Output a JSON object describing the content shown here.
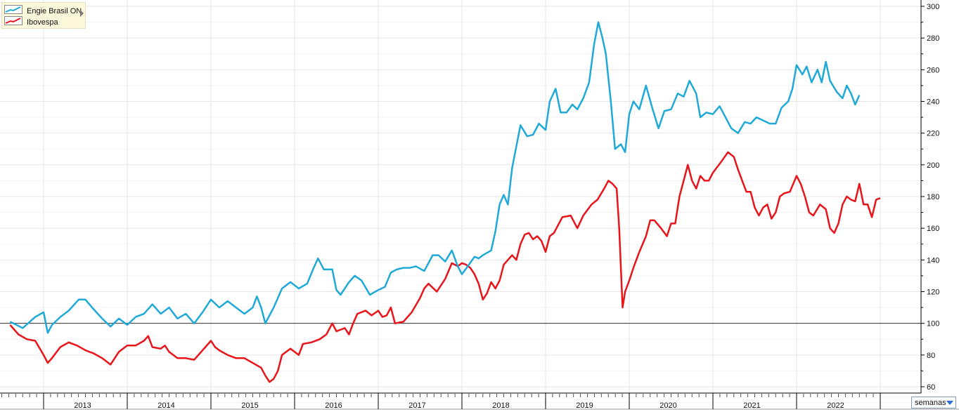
{
  "legend": {
    "items": [
      {
        "label": "Engie Brasil ON",
        "color": "#1fa9d8"
      },
      {
        "label": "Ibovespa",
        "color": "#e8141a"
      }
    ]
  },
  "period_selector": {
    "value": "semanas"
  },
  "chart_data": {
    "type": "line",
    "x_tick_labels": [
      "2013",
      "2014",
      "2015",
      "2016",
      "2017",
      "2018",
      "2019",
      "2020",
      "2021",
      "2022"
    ],
    "y_ticks": [
      60,
      80,
      100,
      120,
      140,
      160,
      180,
      200,
      220,
      240,
      260,
      280,
      300
    ],
    "ylim": [
      50,
      300
    ],
    "xlim": [
      2012.6,
      2023.0
    ],
    "baseline": 100,
    "grid": true,
    "y_axis_side": "right",
    "legend_position": "top-left",
    "series": [
      {
        "name": "Engie Brasil ON",
        "color": "#1fa9d8",
        "points": [
          [
            2012.6,
            101
          ],
          [
            2012.75,
            97
          ],
          [
            2012.9,
            104
          ],
          [
            2013.0,
            107
          ],
          [
            2013.05,
            94
          ],
          [
            2013.1,
            99
          ],
          [
            2013.2,
            104
          ],
          [
            2013.3,
            108
          ],
          [
            2013.42,
            115
          ],
          [
            2013.5,
            115
          ],
          [
            2013.58,
            110
          ],
          [
            2013.7,
            103
          ],
          [
            2013.8,
            98
          ],
          [
            2013.9,
            103
          ],
          [
            2014.0,
            99
          ],
          [
            2014.1,
            104
          ],
          [
            2014.2,
            106
          ],
          [
            2014.3,
            112
          ],
          [
            2014.4,
            106
          ],
          [
            2014.5,
            110
          ],
          [
            2014.6,
            103
          ],
          [
            2014.7,
            106
          ],
          [
            2014.8,
            100
          ],
          [
            2014.9,
            107
          ],
          [
            2015.0,
            115
          ],
          [
            2015.1,
            110
          ],
          [
            2015.2,
            114
          ],
          [
            2015.3,
            110
          ],
          [
            2015.4,
            106
          ],
          [
            2015.5,
            110
          ],
          [
            2015.55,
            117
          ],
          [
            2015.6,
            110
          ],
          [
            2015.65,
            100
          ],
          [
            2015.75,
            110
          ],
          [
            2015.85,
            122
          ],
          [
            2015.95,
            126
          ],
          [
            2016.05,
            122
          ],
          [
            2016.15,
            125
          ],
          [
            2016.22,
            134
          ],
          [
            2016.28,
            141
          ],
          [
            2016.35,
            134
          ],
          [
            2016.45,
            134
          ],
          [
            2016.5,
            121
          ],
          [
            2016.55,
            118
          ],
          [
            2016.65,
            126
          ],
          [
            2016.72,
            130
          ],
          [
            2016.8,
            127
          ],
          [
            2016.9,
            118
          ],
          [
            2017.0,
            121
          ],
          [
            2017.08,
            123
          ],
          [
            2017.15,
            132
          ],
          [
            2017.22,
            134
          ],
          [
            2017.3,
            135
          ],
          [
            2017.38,
            135
          ],
          [
            2017.45,
            136
          ],
          [
            2017.55,
            133
          ],
          [
            2017.65,
            143
          ],
          [
            2017.72,
            143
          ],
          [
            2017.8,
            139
          ],
          [
            2017.88,
            146
          ],
          [
            2017.95,
            136
          ],
          [
            2018.0,
            131
          ],
          [
            2018.07,
            136
          ],
          [
            2018.15,
            142
          ],
          [
            2018.2,
            141
          ],
          [
            2018.25,
            143
          ],
          [
            2018.35,
            146
          ],
          [
            2018.4,
            158
          ],
          [
            2018.45,
            175
          ],
          [
            2018.5,
            181
          ],
          [
            2018.55,
            175
          ],
          [
            2018.6,
            198
          ],
          [
            2018.7,
            225
          ],
          [
            2018.78,
            218
          ],
          [
            2018.85,
            219
          ],
          [
            2018.92,
            226
          ],
          [
            2019.0,
            222
          ],
          [
            2019.05,
            240
          ],
          [
            2019.12,
            248
          ],
          [
            2019.18,
            233
          ],
          [
            2019.25,
            233
          ],
          [
            2019.32,
            238
          ],
          [
            2019.38,
            235
          ],
          [
            2019.45,
            242
          ],
          [
            2019.52,
            252
          ],
          [
            2019.58,
            276
          ],
          [
            2019.63,
            290
          ],
          [
            2019.68,
            280
          ],
          [
            2019.72,
            270
          ],
          [
            2019.78,
            240
          ],
          [
            2019.83,
            210
          ],
          [
            2019.9,
            213
          ],
          [
            2019.95,
            208
          ],
          [
            2020.0,
            232
          ],
          [
            2020.05,
            240
          ],
          [
            2020.12,
            235
          ],
          [
            2020.2,
            250
          ],
          [
            2020.28,
            235
          ],
          [
            2020.35,
            223
          ],
          [
            2020.42,
            234
          ],
          [
            2020.5,
            235
          ],
          [
            2020.58,
            245
          ],
          [
            2020.65,
            243
          ],
          [
            2020.72,
            253
          ],
          [
            2020.8,
            245
          ],
          [
            2020.85,
            230
          ],
          [
            2020.92,
            233
          ],
          [
            2021.0,
            232
          ],
          [
            2021.08,
            237
          ],
          [
            2021.15,
            230
          ],
          [
            2021.22,
            223
          ],
          [
            2021.3,
            220
          ],
          [
            2021.38,
            227
          ],
          [
            2021.45,
            226
          ],
          [
            2021.52,
            230
          ],
          [
            2021.6,
            228
          ],
          [
            2021.68,
            226
          ],
          [
            2021.75,
            226
          ],
          [
            2021.82,
            236
          ],
          [
            2021.9,
            240
          ],
          [
            2021.95,
            248
          ],
          [
            2022.0,
            263
          ],
          [
            2022.07,
            257
          ],
          [
            2022.12,
            262
          ],
          [
            2022.18,
            252
          ],
          [
            2022.25,
            260
          ],
          [
            2022.3,
            252
          ],
          [
            2022.35,
            265
          ],
          [
            2022.4,
            253
          ],
          [
            2022.48,
            246
          ],
          [
            2022.55,
            242
          ],
          [
            2022.6,
            250
          ],
          [
            2022.65,
            245
          ],
          [
            2022.7,
            238
          ],
          [
            2022.75,
            244
          ]
        ]
      },
      {
        "name": "Ibovespa",
        "color": "#e8141a",
        "points": [
          [
            2012.6,
            99
          ],
          [
            2012.7,
            93
          ],
          [
            2012.8,
            90
          ],
          [
            2012.9,
            89
          ],
          [
            2013.0,
            80
          ],
          [
            2013.05,
            75
          ],
          [
            2013.1,
            78
          ],
          [
            2013.2,
            85
          ],
          [
            2013.3,
            88
          ],
          [
            2013.4,
            86
          ],
          [
            2013.5,
            83
          ],
          [
            2013.6,
            81
          ],
          [
            2013.7,
            78
          ],
          [
            2013.8,
            74
          ],
          [
            2013.9,
            82
          ],
          [
            2014.0,
            86
          ],
          [
            2014.1,
            86
          ],
          [
            2014.2,
            89
          ],
          [
            2014.25,
            92
          ],
          [
            2014.3,
            85
          ],
          [
            2014.4,
            84
          ],
          [
            2014.45,
            86
          ],
          [
            2014.5,
            82
          ],
          [
            2014.6,
            78
          ],
          [
            2014.7,
            78
          ],
          [
            2014.8,
            77
          ],
          [
            2014.9,
            83
          ],
          [
            2015.0,
            89
          ],
          [
            2015.05,
            85
          ],
          [
            2015.1,
            83
          ],
          [
            2015.2,
            80
          ],
          [
            2015.3,
            78
          ],
          [
            2015.4,
            78
          ],
          [
            2015.5,
            75
          ],
          [
            2015.6,
            72
          ],
          [
            2015.65,
            67
          ],
          [
            2015.7,
            63
          ],
          [
            2015.75,
            65
          ],
          [
            2015.8,
            70
          ],
          [
            2015.85,
            80
          ],
          [
            2015.95,
            84
          ],
          [
            2016.05,
            80
          ],
          [
            2016.1,
            87
          ],
          [
            2016.2,
            88
          ],
          [
            2016.3,
            90
          ],
          [
            2016.38,
            93
          ],
          [
            2016.45,
            100
          ],
          [
            2016.5,
            95
          ],
          [
            2016.6,
            97
          ],
          [
            2016.65,
            93
          ],
          [
            2016.7,
            100
          ],
          [
            2016.75,
            106
          ],
          [
            2016.85,
            108
          ],
          [
            2016.92,
            105
          ],
          [
            2017.0,
            108
          ],
          [
            2017.05,
            104
          ],
          [
            2017.1,
            105
          ],
          [
            2017.15,
            110
          ],
          [
            2017.2,
            100
          ],
          [
            2017.3,
            101
          ],
          [
            2017.4,
            107
          ],
          [
            2017.5,
            116
          ],
          [
            2017.55,
            122
          ],
          [
            2017.6,
            125
          ],
          [
            2017.7,
            120
          ],
          [
            2017.8,
            128
          ],
          [
            2017.88,
            138
          ],
          [
            2017.95,
            136
          ],
          [
            2018.0,
            138
          ],
          [
            2018.05,
            137
          ],
          [
            2018.1,
            135
          ],
          [
            2018.15,
            131
          ],
          [
            2018.2,
            125
          ],
          [
            2018.25,
            115
          ],
          [
            2018.3,
            119
          ],
          [
            2018.35,
            126
          ],
          [
            2018.4,
            122
          ],
          [
            2018.45,
            127
          ],
          [
            2018.5,
            137
          ],
          [
            2018.55,
            140
          ],
          [
            2018.6,
            143
          ],
          [
            2018.65,
            140
          ],
          [
            2018.7,
            150
          ],
          [
            2018.75,
            156
          ],
          [
            2018.8,
            157
          ],
          [
            2018.85,
            153
          ],
          [
            2018.9,
            155
          ],
          [
            2018.95,
            152
          ],
          [
            2019.0,
            145
          ],
          [
            2019.05,
            155
          ],
          [
            2019.1,
            157
          ],
          [
            2019.2,
            167
          ],
          [
            2019.3,
            168
          ],
          [
            2019.38,
            160
          ],
          [
            2019.45,
            168
          ],
          [
            2019.55,
            175
          ],
          [
            2019.62,
            178
          ],
          [
            2019.7,
            185
          ],
          [
            2019.75,
            190
          ],
          [
            2019.8,
            188
          ],
          [
            2019.85,
            185
          ],
          [
            2019.88,
            160
          ],
          [
            2019.92,
            110
          ],
          [
            2019.95,
            120
          ],
          [
            2020.0,
            127
          ],
          [
            2020.05,
            135
          ],
          [
            2020.12,
            145
          ],
          [
            2020.2,
            155
          ],
          [
            2020.25,
            165
          ],
          [
            2020.3,
            165
          ],
          [
            2020.38,
            160
          ],
          [
            2020.45,
            155
          ],
          [
            2020.5,
            163
          ],
          [
            2020.55,
            163
          ],
          [
            2020.6,
            180
          ],
          [
            2020.65,
            190
          ],
          [
            2020.7,
            200
          ],
          [
            2020.75,
            190
          ],
          [
            2020.8,
            185
          ],
          [
            2020.85,
            193
          ],
          [
            2020.9,
            190
          ],
          [
            2020.95,
            190
          ],
          [
            2021.0,
            195
          ],
          [
            2021.1,
            202
          ],
          [
            2021.18,
            208
          ],
          [
            2021.25,
            205
          ],
          [
            2021.3,
            197
          ],
          [
            2021.35,
            190
          ],
          [
            2021.4,
            183
          ],
          [
            2021.45,
            183
          ],
          [
            2021.5,
            173
          ],
          [
            2021.55,
            168
          ],
          [
            2021.6,
            173
          ],
          [
            2021.65,
            175
          ],
          [
            2021.7,
            166
          ],
          [
            2021.75,
            170
          ],
          [
            2021.8,
            180
          ],
          [
            2021.85,
            182
          ],
          [
            2021.92,
            183
          ],
          [
            2022.0,
            193
          ],
          [
            2022.05,
            188
          ],
          [
            2022.1,
            180
          ],
          [
            2022.15,
            170
          ],
          [
            2022.2,
            168
          ],
          [
            2022.28,
            175
          ],
          [
            2022.35,
            172
          ],
          [
            2022.4,
            160
          ],
          [
            2022.45,
            157
          ],
          [
            2022.5,
            163
          ],
          [
            2022.55,
            175
          ],
          [
            2022.6,
            180
          ],
          [
            2022.65,
            178
          ],
          [
            2022.7,
            177
          ],
          [
            2022.75,
            188
          ],
          [
            2022.8,
            175
          ],
          [
            2022.85,
            175
          ],
          [
            2022.9,
            167
          ],
          [
            2022.95,
            178
          ],
          [
            2023.0,
            179
          ]
        ]
      }
    ]
  }
}
